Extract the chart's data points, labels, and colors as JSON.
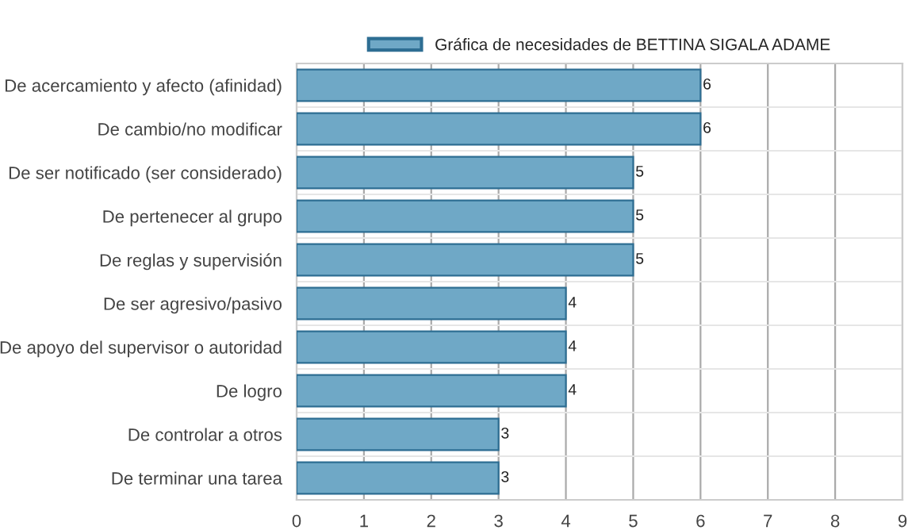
{
  "chart_data": {
    "type": "bar",
    "orientation": "horizontal",
    "categories": [
      "De acercamiento y afecto (afinidad)",
      "De cambio/no modificar",
      "De ser notificado (ser considerado)",
      "De pertenecer al grupo",
      "De reglas y supervisión",
      "De ser agresivo/pasivo",
      "De apoyo del supervisor o autoridad",
      "De logro",
      "De controlar a otros",
      "De terminar una tarea"
    ],
    "series": [
      {
        "name": "Gráfica de necesidades de BETTINA SIGALA ADAME",
        "color": "#6fa8c6",
        "values": [
          6,
          6,
          5,
          5,
          5,
          4,
          4,
          4,
          3,
          3
        ]
      }
    ],
    "xlim": [
      0,
      9
    ],
    "xticks": [
      0,
      1,
      2,
      3,
      4,
      5,
      6,
      7,
      8,
      9
    ],
    "grid": true,
    "legend": "top",
    "data_labels": true
  }
}
